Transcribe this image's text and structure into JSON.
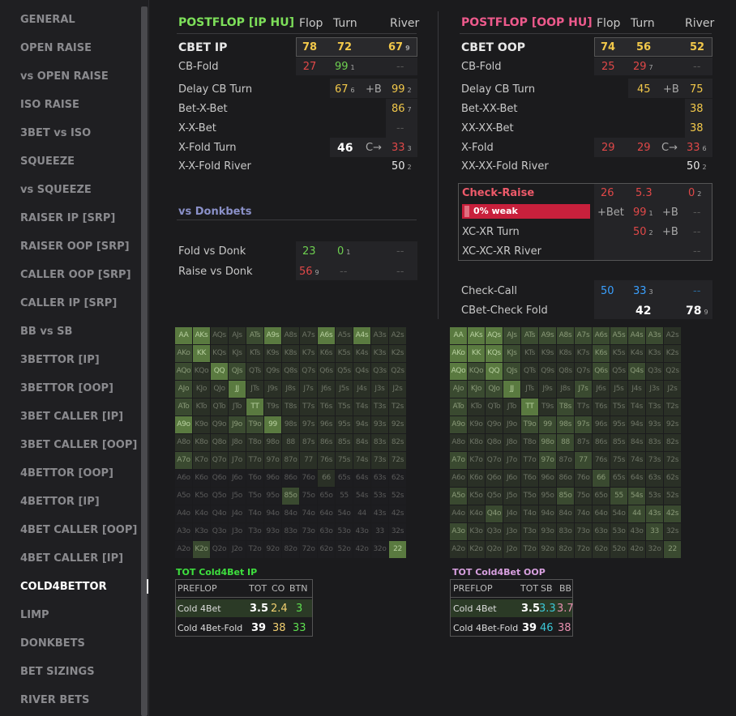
{
  "sidebar": {
    "items": [
      "GENERAL",
      "OPEN RAISE",
      "vs OPEN RAISE",
      "ISO RAISE",
      "3BET vs ISO",
      "SQUEEZE",
      "vs SQUEEZE",
      "RAISER IP [SRP]",
      "RAISER OOP [SRP]",
      "CALLER OOP [SRP]",
      "CALLER IP [SRP]",
      "BB vs SB",
      "3BETTOR [IP]",
      "3BETTOR [OOP]",
      "3BET CALLER [IP]",
      "3BET CALLER [OOP]",
      "4BETTOR [OOP]",
      "4BETTOR [IP]",
      "4BET CALLER [OOP]",
      "4BET CALLER [IP]",
      "COLD4BETTOR",
      "LIMP",
      "DONKBETS",
      "BET SIZINGS",
      "RIVER BETS"
    ],
    "active": "COLD4BETTOR"
  },
  "ip": {
    "title": "POSTFLOP [IP HU]",
    "cols": [
      "Flop",
      "Turn",
      "River"
    ],
    "cbet": {
      "label": "CBET IP",
      "flop": "78",
      "turn": "72",
      "river": "67",
      "river_sub": "9"
    },
    "cbfold": {
      "label": "CB-Fold",
      "flop": "27",
      "turn": "99",
      "turn_sub": "1",
      "river": "--"
    },
    "delay": {
      "label": "Delay CB Turn",
      "turn": "67",
      "turn_sub": "6",
      "mid": "+B",
      "river": "99",
      "river_sub": "2"
    },
    "bxb": {
      "label": "Bet-X-Bet",
      "river": "86",
      "river_sub": "7"
    },
    "xxb": {
      "label": "X-X-Bet",
      "river": "--"
    },
    "xfold": {
      "label": "X-Fold Turn",
      "turn": "46",
      "mid": "C→",
      "river": "33",
      "river_sub": "3"
    },
    "xxfold": {
      "label": "X-X-Fold River",
      "river": "50",
      "river_sub": "2"
    },
    "donk_title": "vs Donkbets",
    "fold_donk": {
      "label": "Fold vs Donk",
      "flop": "23",
      "turn": "0",
      "turn_sub": "1",
      "river": "--"
    },
    "raise_donk": {
      "label": "Raise vs Donk",
      "flop": "56",
      "flop_sub": "9",
      "turn": "--",
      "river": "--"
    }
  },
  "oop": {
    "title": "POSTFLOP [OOP HU]",
    "cols": [
      "Flop",
      "Turn",
      "River"
    ],
    "cbet": {
      "label": "CBET OOP",
      "flop": "74",
      "turn": "56",
      "river": "52"
    },
    "cbfold": {
      "label": "CB-Fold",
      "flop": "25",
      "turn": "29",
      "turn_sub": "7",
      "river": "--"
    },
    "delay": {
      "label": "Delay CB Turn",
      "turn": "45",
      "mid": "+B",
      "river": "75"
    },
    "bxxb": {
      "label": "Bet-XX-Bet",
      "river": "38"
    },
    "xxxb": {
      "label": "XX-XX-Bet",
      "river": "38"
    },
    "xfold": {
      "label": "X-Fold",
      "flop": "29",
      "turn": "29",
      "mid": "C→",
      "river": "33",
      "river_sub": "6"
    },
    "xxfold": {
      "label": "XX-XX-Fold River",
      "river": "50",
      "river_sub": "2"
    },
    "cr": {
      "label": "Check-Raise",
      "flop": "26",
      "turn": "5.3",
      "river": "0",
      "river_sub": "2",
      "weak_pct": 0,
      "bar_label": "0% weak",
      "b1": "+Bet",
      "turn2": "99",
      "turn2_sub": "1",
      "b2": "+B",
      "river2": "--"
    },
    "xcxr": {
      "label": "XC-XR Turn",
      "turn": "50",
      "turn_sub": "2",
      "b": "+B",
      "river": "--"
    },
    "xcxcxr": {
      "label": "XC-XC-XR River",
      "river": "--"
    },
    "cc": {
      "label": "Check-Call",
      "flop": "50",
      "turn": "33",
      "turn_sub": "3",
      "river": "--"
    },
    "cbcf": {
      "label": "CBet-Check Fold",
      "turn": "42",
      "river": "78",
      "river_sub": "9"
    }
  },
  "colors": {
    "ip_title": "#7ee05a",
    "oop_title": "#ee5a8c",
    "accent_bar": "#c8203c"
  },
  "matrix_ranks": [
    "A",
    "K",
    "Q",
    "J",
    "T",
    "9",
    "8",
    "7",
    "6",
    "5",
    "4",
    "3",
    "2"
  ],
  "matrix_ip_levels": [
    [
      3,
      3,
      1,
      1,
      2,
      3,
      1,
      1,
      3,
      1,
      3,
      1,
      1
    ],
    [
      2,
      3,
      1,
      1,
      1,
      1,
      1,
      1,
      1,
      1,
      1,
      1,
      1
    ],
    [
      2,
      1,
      3,
      2,
      1,
      1,
      1,
      1,
      1,
      1,
      1,
      1,
      1
    ],
    [
      2,
      1,
      1,
      3,
      1,
      1,
      1,
      1,
      1,
      1,
      1,
      1,
      1
    ],
    [
      2,
      1,
      1,
      1,
      3,
      1,
      1,
      1,
      1,
      1,
      1,
      1,
      1
    ],
    [
      3,
      1,
      1,
      2,
      2,
      3,
      1,
      1,
      1,
      1,
      1,
      1,
      1
    ],
    [
      1,
      1,
      1,
      1,
      1,
      1,
      1,
      1,
      1,
      1,
      1,
      1,
      1
    ],
    [
      2,
      1,
      1,
      1,
      1,
      1,
      1,
      1,
      1,
      1,
      1,
      1,
      1
    ],
    [
      0,
      0,
      0,
      0,
      0,
      0,
      0,
      0,
      1,
      0,
      0,
      0,
      0
    ],
    [
      0,
      0,
      0,
      0,
      0,
      0,
      2,
      0,
      0,
      0,
      0,
      0,
      0
    ],
    [
      0,
      0,
      0,
      0,
      0,
      0,
      0,
      0,
      0,
      0,
      0,
      0,
      0
    ],
    [
      0,
      0,
      0,
      0,
      0,
      0,
      0,
      0,
      0,
      0,
      0,
      0,
      0
    ],
    [
      0,
      2,
      0,
      0,
      0,
      0,
      0,
      0,
      0,
      0,
      0,
      0,
      3
    ]
  ],
  "matrix_oop_levels": [
    [
      3,
      3,
      3,
      2,
      2,
      2,
      2,
      2,
      2,
      2,
      2,
      2,
      1
    ],
    [
      3,
      3,
      3,
      2,
      1,
      1,
      1,
      1,
      2,
      1,
      1,
      1,
      1
    ],
    [
      3,
      2,
      3,
      2,
      1,
      1,
      1,
      1,
      2,
      1,
      2,
      1,
      1
    ],
    [
      2,
      2,
      2,
      3,
      1,
      1,
      1,
      2,
      1,
      1,
      1,
      1,
      1
    ],
    [
      2,
      1,
      1,
      1,
      3,
      1,
      2,
      1,
      1,
      1,
      1,
      1,
      1
    ],
    [
      2,
      1,
      1,
      1,
      2,
      2,
      2,
      2,
      1,
      1,
      1,
      1,
      1
    ],
    [
      1,
      1,
      1,
      1,
      1,
      2,
      2,
      1,
      1,
      1,
      1,
      1,
      1
    ],
    [
      2,
      1,
      1,
      1,
      1,
      2,
      1,
      2,
      1,
      1,
      1,
      1,
      1
    ],
    [
      1,
      1,
      1,
      1,
      1,
      1,
      1,
      1,
      2,
      1,
      1,
      1,
      1
    ],
    [
      2,
      1,
      1,
      1,
      1,
      1,
      2,
      1,
      1,
      2,
      2,
      1,
      1
    ],
    [
      1,
      1,
      2,
      1,
      1,
      1,
      1,
      1,
      1,
      1,
      2,
      2,
      2
    ],
    [
      2,
      1,
      1,
      1,
      1,
      1,
      1,
      1,
      1,
      1,
      1,
      2,
      1
    ],
    [
      1,
      1,
      1,
      1,
      1,
      1,
      1,
      1,
      1,
      1,
      1,
      1,
      2
    ]
  ],
  "c4_ip": {
    "title": "TOT Cold4Bet IP",
    "h": [
      "PREFLOP",
      "TOT",
      "CO",
      "BTN"
    ],
    "r1": [
      "Cold 4Bet",
      "3.5",
      "2.4",
      "3"
    ],
    "r2": [
      "Cold 4Bet-Fold",
      "39",
      "38",
      "33"
    ]
  },
  "c4_oop": {
    "title": "TOT Cold4Bet  OOP",
    "h": [
      "PREFLOP",
      "TOT",
      "SB",
      "BB"
    ],
    "r1": [
      "Cold 4Bet",
      "3.5",
      "3.3",
      "3.7"
    ],
    "r2": [
      "Cold 4Bet-Fold",
      "39",
      "46",
      "38"
    ]
  }
}
